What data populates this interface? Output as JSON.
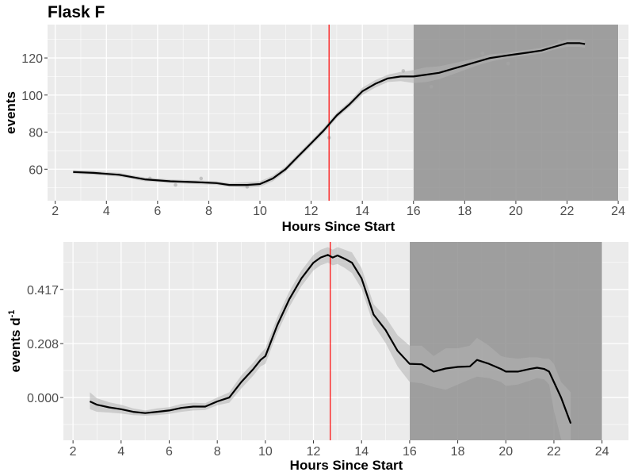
{
  "title": "Flask F",
  "colors": {
    "panel_bg": "#ebebeb",
    "grid": "#ffffff",
    "shade": "#8c8c8c",
    "ribbon": "#b3b3b3",
    "line": "#000000",
    "marker": "#ff0000"
  },
  "chart_data": [
    {
      "type": "line",
      "title": "Flask F",
      "xlabel": "Hours Since Start",
      "ylabel": "events",
      "xlim": [
        1.7,
        24.4
      ],
      "ylim": [
        43,
        138
      ],
      "xticks": [
        "2",
        "4",
        "6",
        "8",
        "10",
        "12",
        "14",
        "16",
        "18",
        "20",
        "22",
        "24"
      ],
      "yticks": [
        "60",
        "80",
        "100",
        "120"
      ],
      "grid": true,
      "vline": 12.7,
      "shaded_region": [
        16,
        24
      ],
      "series": [
        {
          "x": [
            2.7,
            3.5,
            4.5,
            5.5,
            6.5,
            7.5,
            8.3,
            8.8,
            9.5,
            10,
            10.5,
            11,
            11.5,
            12,
            12.5,
            13,
            13.5,
            14,
            14.5,
            15,
            15.5,
            16,
            16.5,
            17,
            17.5,
            18,
            18.5,
            19,
            19.5,
            20,
            20.5,
            21,
            21.5,
            22,
            22.5,
            22.7
          ],
          "y": [
            58.5,
            58,
            57,
            54.5,
            53.5,
            53,
            52.5,
            51.5,
            51.5,
            52,
            55,
            60,
            67,
            74,
            81,
            89,
            95,
            102,
            106,
            109,
            110,
            110,
            111,
            112,
            114,
            116,
            118,
            120,
            121,
            122,
            123,
            124,
            126,
            128,
            128,
            127.5
          ],
          "lower": [
            57.5,
            57,
            56,
            53.5,
            52.5,
            52,
            51.5,
            50.5,
            50,
            50.5,
            53.5,
            58.5,
            65.5,
            72.5,
            79.5,
            87.5,
            93.5,
            100,
            104,
            107,
            107.5,
            106.5,
            107,
            108.5,
            111,
            113.5,
            116,
            118,
            119.5,
            120.5,
            121.5,
            122.5,
            124.5,
            126,
            126,
            125.5
          ],
          "upper": [
            59.5,
            59,
            58,
            55.5,
            54.5,
            54,
            53.5,
            52.5,
            53,
            53.5,
            56.5,
            61.5,
            68.5,
            75.5,
            82.5,
            90.5,
            96.5,
            104,
            108,
            111,
            112.5,
            113.5,
            115,
            115.5,
            117,
            118.5,
            120,
            122,
            122.5,
            123.5,
            124.5,
            125.5,
            127.5,
            130,
            130,
            129.5
          ],
          "points": [
            [
              5.7,
              55
            ],
            [
              6.7,
              51.5
            ],
            [
              7.7,
              55
            ],
            [
              9.5,
              50.5
            ],
            [
              12.7,
              77
            ],
            [
              15.6,
              113
            ],
            [
              16.7,
              104.5
            ],
            [
              18.7,
              122.5
            ],
            [
              19.7,
              117
            ],
            [
              21.7,
              129
            ]
          ]
        }
      ]
    },
    {
      "type": "line",
      "xlabel": "Hours Since Start",
      "ylabel": "events d",
      "ylabel_superscript": "-1",
      "xlim": [
        1.6,
        25.1
      ],
      "ylim": [
        -0.165,
        0.6
      ],
      "xticks": [
        "2",
        "4",
        "6",
        "8",
        "10",
        "12",
        "14",
        "16",
        "18",
        "20",
        "22",
        "24"
      ],
      "yticks": [
        "0.000",
        "0.208",
        "0.417"
      ],
      "grid": true,
      "vline": 12.7,
      "shaded_region": [
        16,
        24
      ],
      "series": [
        {
          "x": [
            2.7,
            3,
            3.5,
            4,
            4.5,
            5,
            5.5,
            6,
            6.5,
            7,
            7.5,
            8,
            8.5,
            9,
            9.5,
            9.8,
            10,
            10.5,
            11,
            11.5,
            12,
            12.3,
            12.6,
            12.8,
            13,
            13.3,
            13.6,
            14,
            14.5,
            15,
            15.5,
            16,
            16.5,
            17,
            17.5,
            18,
            18.5,
            18.8,
            19.3,
            19.8,
            20,
            20.5,
            21,
            21.3,
            21.6,
            21.8,
            22,
            22.3,
            22.7
          ],
          "y": [
            -0.015,
            -0.028,
            -0.038,
            -0.045,
            -0.055,
            -0.06,
            -0.055,
            -0.05,
            -0.04,
            -0.035,
            -0.035,
            -0.015,
            0,
            0.06,
            0.11,
            0.145,
            0.16,
            0.28,
            0.38,
            0.46,
            0.52,
            0.54,
            0.55,
            0.54,
            0.548,
            0.535,
            0.52,
            0.46,
            0.32,
            0.26,
            0.18,
            0.13,
            0.128,
            0.1,
            0.112,
            0.118,
            0.12,
            0.145,
            0.13,
            0.11,
            0.1,
            0.1,
            0.11,
            0.115,
            0.11,
            0.1,
            0.06,
            0.0,
            -0.1
          ],
          "lower": [
            -0.045,
            -0.055,
            -0.058,
            -0.062,
            -0.068,
            -0.07,
            -0.068,
            -0.063,
            -0.055,
            -0.05,
            -0.048,
            -0.03,
            -0.02,
            0.035,
            0.085,
            0.12,
            0.13,
            0.25,
            0.35,
            0.43,
            0.49,
            0.51,
            0.52,
            0.51,
            0.515,
            0.5,
            0.48,
            0.42,
            0.28,
            0.21,
            0.12,
            0.06,
            0.055,
            0.04,
            0.03,
            0.05,
            0.07,
            0.08,
            0.075,
            0.06,
            0.045,
            0.05,
            0.065,
            0.075,
            0.07,
            0.05,
            -0.05,
            -0.16,
            -0.25
          ],
          "upper": [
            0.02,
            -0.003,
            -0.018,
            -0.028,
            -0.042,
            -0.05,
            -0.042,
            -0.037,
            -0.025,
            -0.02,
            -0.022,
            0,
            0.02,
            0.085,
            0.135,
            0.17,
            0.19,
            0.31,
            0.41,
            0.49,
            0.55,
            0.57,
            0.58,
            0.57,
            0.58,
            0.57,
            0.56,
            0.5,
            0.36,
            0.31,
            0.24,
            0.2,
            0.2,
            0.16,
            0.19,
            0.19,
            0.2,
            0.23,
            0.2,
            0.16,
            0.155,
            0.15,
            0.155,
            0.155,
            0.15,
            0.15,
            0.13,
            0.06,
            0.02
          ]
        }
      ]
    }
  ]
}
